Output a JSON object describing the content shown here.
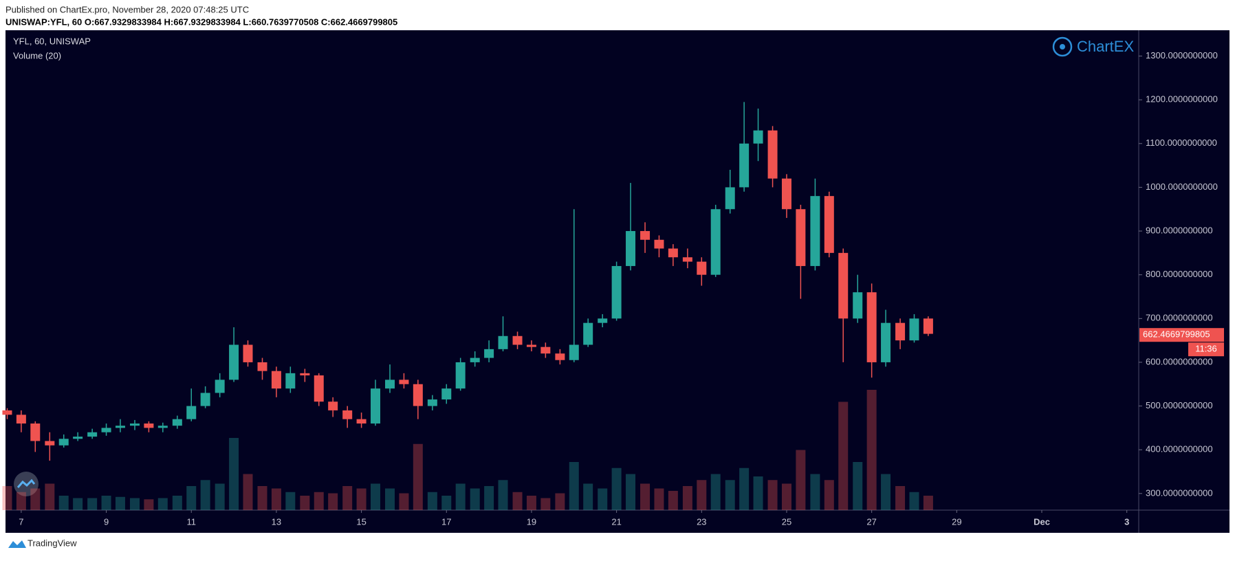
{
  "published": "Published on ChartEx.pro, November 28, 2020 07:48:25 UTC",
  "symbol_info": "UNISWAP:YFL, 60  O:667.9329833984  H:667.9329833984  L:660.7639770508  C:662.4669799805",
  "footer": "TradingView",
  "chart_data": {
    "type": "candlestick",
    "legend_title": "YFL, 60, UNISWAP",
    "volume_label": "Volume (20)",
    "logo": "ChartEX",
    "up_color": "#26a69a",
    "down_color": "#ef5350",
    "x": [
      6.67,
      7,
      7.33,
      7.67,
      8,
      8.33,
      8.67,
      9,
      9.33,
      9.67,
      10,
      10.33,
      10.67,
      11,
      11.33,
      11.67,
      12,
      12.33,
      12.67,
      13,
      13.33,
      13.67,
      14,
      14.33,
      14.67,
      15,
      15.33,
      15.67,
      16,
      16.33,
      16.67,
      17,
      17.33,
      17.67,
      18,
      18.33,
      18.67,
      19,
      19.33,
      19.67,
      20,
      20.33,
      20.67,
      21,
      21.33,
      21.67,
      22,
      22.33,
      22.67,
      23,
      23.33,
      23.67,
      24,
      24.33,
      24.67,
      25,
      25.33,
      25.67,
      26,
      26.33,
      26.67,
      27,
      27.33,
      27.67,
      28,
      28.33
    ],
    "open": [
      490,
      480,
      460,
      420,
      410,
      425,
      430,
      440,
      450,
      455,
      460,
      450,
      455,
      470,
      500,
      530,
      560,
      640,
      600,
      580,
      540,
      575,
      570,
      510,
      490,
      470,
      460,
      540,
      560,
      550,
      500,
      515,
      540,
      600,
      610,
      630,
      660,
      640,
      635,
      620,
      605,
      640,
      690,
      700,
      820,
      900,
      880,
      860,
      840,
      830,
      800,
      950,
      1000,
      1100,
      1130,
      1020,
      950,
      820,
      980,
      850,
      700,
      760,
      600,
      690,
      650,
      700
    ],
    "high": [
      495,
      490,
      465,
      440,
      435,
      440,
      448,
      460,
      470,
      468,
      465,
      462,
      478,
      540,
      545,
      575,
      680,
      650,
      610,
      590,
      590,
      585,
      575,
      520,
      500,
      485,
      560,
      595,
      575,
      560,
      525,
      550,
      610,
      625,
      650,
      705,
      670,
      650,
      645,
      630,
      950,
      700,
      710,
      830,
      1010,
      920,
      890,
      870,
      860,
      840,
      960,
      1040,
      1195,
      1180,
      1140,
      1030,
      960,
      1020,
      990,
      860,
      800,
      780,
      720,
      700,
      710,
      705
    ],
    "low": [
      470,
      440,
      395,
      375,
      405,
      420,
      425,
      432,
      440,
      445,
      440,
      440,
      448,
      465,
      495,
      520,
      555,
      590,
      560,
      520,
      530,
      555,
      500,
      475,
      450,
      450,
      455,
      530,
      540,
      470,
      490,
      505,
      535,
      590,
      600,
      625,
      630,
      625,
      610,
      595,
      600,
      635,
      680,
      695,
      810,
      850,
      840,
      820,
      815,
      775,
      795,
      940,
      990,
      1060,
      1000,
      930,
      745,
      810,
      840,
      600,
      690,
      565,
      590,
      630,
      645,
      660
    ],
    "close": [
      480,
      460,
      420,
      410,
      425,
      430,
      440,
      450,
      455,
      460,
      450,
      455,
      470,
      500,
      530,
      560,
      640,
      600,
      580,
      540,
      575,
      570,
      510,
      490,
      470,
      460,
      540,
      560,
      550,
      500,
      515,
      540,
      600,
      610,
      630,
      660,
      640,
      635,
      620,
      605,
      640,
      690,
      700,
      820,
      900,
      880,
      860,
      840,
      830,
      800,
      950,
      1000,
      1100,
      1130,
      1020,
      950,
      820,
      980,
      850,
      700,
      760,
      600,
      690,
      650,
      700,
      665
    ],
    "volume": [
      20,
      15,
      18,
      22,
      12,
      10,
      10,
      12,
      11,
      10,
      9,
      10,
      12,
      20,
      25,
      22,
      60,
      30,
      20,
      18,
      15,
      12,
      15,
      14,
      20,
      18,
      22,
      18,
      14,
      55,
      15,
      12,
      22,
      18,
      20,
      25,
      15,
      12,
      10,
      14,
      40,
      22,
      18,
      35,
      30,
      22,
      18,
      16,
      20,
      25,
      30,
      25,
      35,
      28,
      25,
      22,
      50,
      30,
      25,
      90,
      40,
      100,
      30,
      20,
      15,
      12
    ],
    "xlim": [
      6.63,
      33.28
    ],
    "xticks": [
      7,
      9,
      11,
      13,
      15,
      17,
      19,
      21,
      23,
      25,
      27,
      29,
      {
        "value": 31,
        "label": "Dec"
      },
      {
        "value": 33,
        "label": "3"
      }
    ],
    "ylim": [
      262,
      1359
    ],
    "yticks": [
      {
        "value": 300,
        "label": "300.0000000000"
      },
      {
        "value": 400,
        "label": "400.0000000000"
      },
      {
        "value": 500,
        "label": "500.0000000000"
      },
      {
        "value": 600,
        "label": "600.0000000000"
      },
      {
        "value": 700,
        "label": "700.0000000000"
      },
      {
        "value": 800,
        "label": "800.0000000000"
      },
      {
        "value": 900,
        "label": "900.0000000000"
      },
      {
        "value": 1000,
        "label": "1000.0000000000"
      },
      {
        "value": 1100,
        "label": "1100.0000000000"
      },
      {
        "value": 1200,
        "label": "1200.0000000000"
      },
      {
        "value": 1300,
        "label": "1300.0000000000"
      }
    ],
    "last_price": 662.4669799805,
    "countdown": "11:36"
  }
}
